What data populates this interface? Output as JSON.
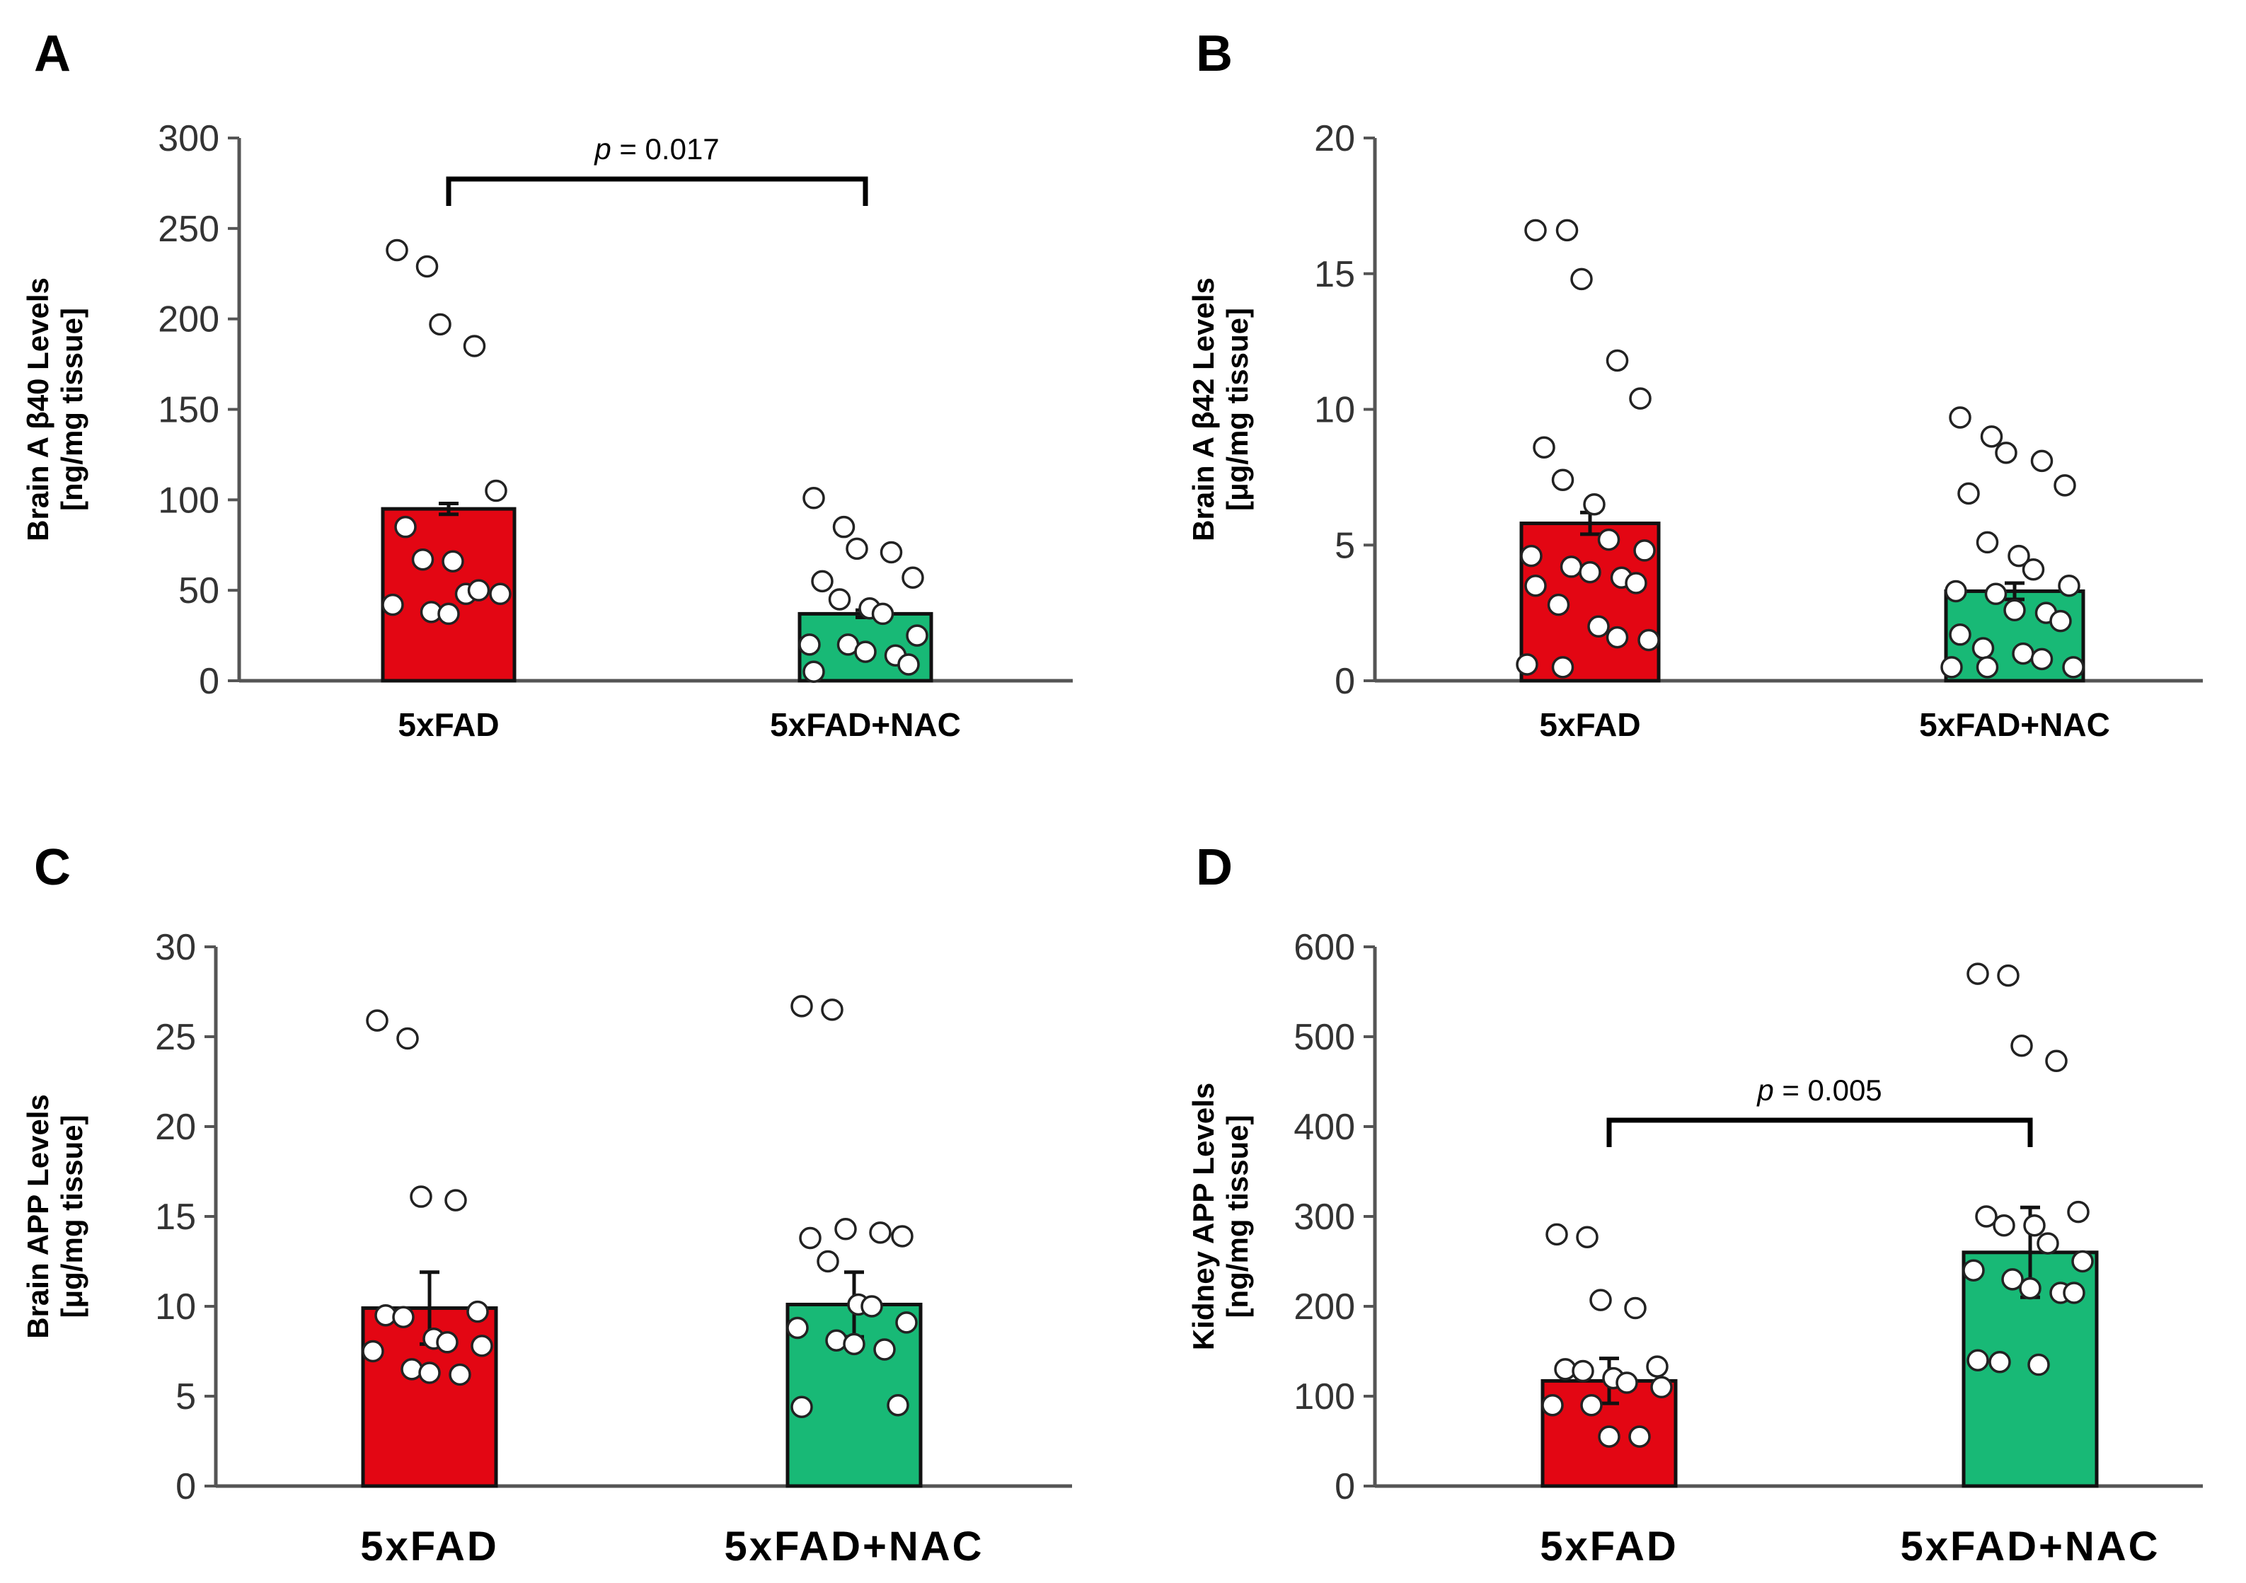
{
  "colors": {
    "group1": "#e30613",
    "group2": "#18b976",
    "outline": "#111111",
    "axis": "#555555",
    "point_fill": "#ffffff"
  },
  "chart_data": [
    {
      "type": "bar",
      "panel": "A",
      "ylabel_line1": "Brain A β40 Levels",
      "ylabel_line2": "[ng/mg tissue]",
      "categories": [
        "5xFAD",
        "5xFAD+NAC"
      ],
      "values": [
        95,
        37
      ],
      "errors": [
        3,
        2
      ],
      "ylim": [
        0,
        300
      ],
      "yticks": [
        "0",
        "50",
        "100",
        "150",
        "200",
        "250",
        "300"
      ],
      "significance": {
        "p_label": "p",
        "text": "= 0.017"
      },
      "points": [
        [
          238,
          229,
          197,
          185,
          105,
          85,
          67,
          66,
          48,
          48,
          42,
          38,
          37,
          50
        ],
        [
          101,
          85,
          73,
          71,
          57,
          55,
          45,
          40,
          37,
          25,
          20,
          20,
          16,
          14,
          9,
          5
        ]
      ]
    },
    {
      "type": "bar",
      "panel": "B",
      "ylabel_line1": "Brain A β42 Levels",
      "ylabel_line2": "[μg/mg tissue]",
      "categories": [
        "5xFAD",
        "5xFAD+NAC"
      ],
      "values": [
        5.8,
        3.3
      ],
      "errors": [
        0.4,
        0.3
      ],
      "ylim": [
        0,
        20
      ],
      "yticks": [
        "0",
        "5",
        "10",
        "15",
        "20"
      ],
      "significance": null,
      "points": [
        [
          16.6,
          16.6,
          14.8,
          11.8,
          10.4,
          8.6,
          7.4,
          6.5,
          5.2,
          4.8,
          4.6,
          4.2,
          4.0,
          3.8,
          3.6,
          3.5,
          2.8,
          2.0,
          1.6,
          1.5,
          0.6,
          0.5
        ],
        [
          9.7,
          9.0,
          8.4,
          8.1,
          7.2,
          6.9,
          5.1,
          4.6,
          4.1,
          3.5,
          3.3,
          3.2,
          2.6,
          2.5,
          2.2,
          1.7,
          1.2,
          1.0,
          0.8,
          0.5,
          0.5,
          0.5
        ]
      ]
    },
    {
      "type": "bar",
      "panel": "C",
      "ylabel_line1": "Brain APP Levels",
      "ylabel_line2": "[μg/mg tissue]",
      "categories": [
        "5xFAD",
        "5xFAD+NAC"
      ],
      "values": [
        9.9,
        10.1
      ],
      "errors": [
        2.0,
        1.8
      ],
      "ylim": [
        0,
        30
      ],
      "yticks": [
        "0",
        "5",
        "10",
        "15",
        "20",
        "25",
        "30"
      ],
      "significance": null,
      "points": [
        [
          25.9,
          24.9,
          16.1,
          15.9,
          9.7,
          9.5,
          9.4,
          8.2,
          8.0,
          7.8,
          7.5,
          6.5,
          6.3,
          6.2
        ],
        [
          26.7,
          26.5,
          14.3,
          14.1,
          13.9,
          13.8,
          12.5,
          10.1,
          10.0,
          9.1,
          8.8,
          8.1,
          7.9,
          7.6,
          4.5,
          4.4
        ]
      ]
    },
    {
      "type": "bar",
      "panel": "D",
      "ylabel_line1": "Kidney APP Levels",
      "ylabel_line2": "[ng/mg tissue]",
      "categories": [
        "5xFAD",
        "5xFAD+NAC"
      ],
      "values": [
        117,
        260
      ],
      "errors": [
        25,
        50
      ],
      "ylim": [
        0,
        600
      ],
      "yticks": [
        "0",
        "100",
        "200",
        "300",
        "400",
        "500",
        "600"
      ],
      "significance": {
        "p_label": "p",
        "text": "= 0.005"
      },
      "points": [
        [
          280,
          277,
          207,
          198,
          133,
          130,
          128,
          120,
          115,
          110,
          90,
          90,
          55,
          55
        ],
        [
          570,
          568,
          490,
          473,
          305,
          300,
          290,
          290,
          270,
          250,
          240,
          230,
          220,
          215,
          215,
          140,
          138,
          135
        ]
      ]
    }
  ]
}
